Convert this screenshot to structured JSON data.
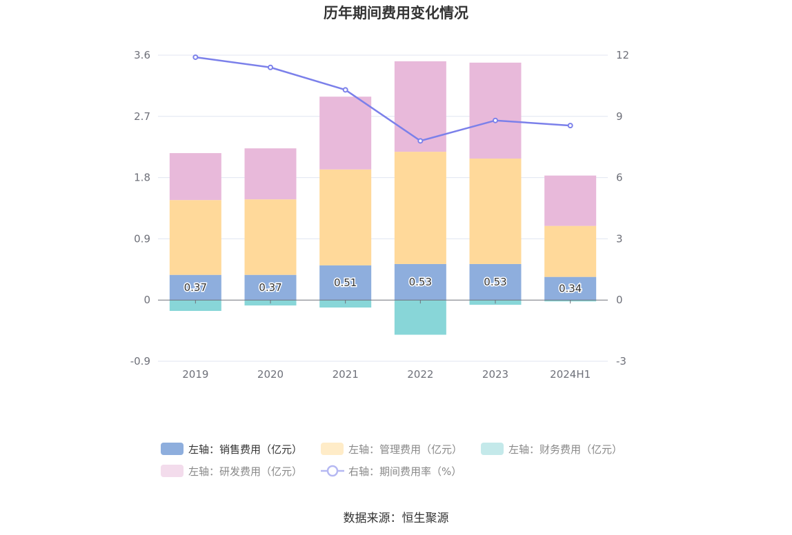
{
  "chart_data": {
    "type": "bar",
    "title": "历年期间费用变化情况",
    "categories": [
      "2019",
      "2020",
      "2021",
      "2022",
      "2023",
      "2024H1"
    ],
    "y_left": {
      "ylim": [
        -0.9,
        3.6
      ],
      "ticks": [
        "3.6",
        "2.7",
        "1.8",
        "0.9",
        "0",
        "-0.9"
      ],
      "tick_values": [
        3.6,
        2.7,
        1.8,
        0.9,
        0,
        -0.9
      ]
    },
    "y_right": {
      "ylim": [
        -3,
        12
      ],
      "ticks": [
        "12",
        "9",
        "6",
        "3",
        "0",
        "-3"
      ],
      "tick_values": [
        12,
        9,
        6,
        3,
        0,
        -3
      ]
    },
    "series": [
      {
        "name": "左轴：销售费用（亿元）",
        "kind": "bar",
        "axis": "left",
        "color": "#8eaedd",
        "values": [
          0.37,
          0.37,
          0.51,
          0.53,
          0.53,
          0.34
        ],
        "labels": [
          "0.37",
          "0.37",
          "0.51",
          "0.53",
          "0.53",
          "0.34"
        ]
      },
      {
        "name": "左轴：管理费用（亿元）",
        "kind": "bar",
        "axis": "left",
        "color": "#ffd99a",
        "values": [
          1.1,
          1.11,
          1.41,
          1.65,
          1.55,
          0.75
        ]
      },
      {
        "name": "左轴：财务费用（亿元）",
        "kind": "bar",
        "axis": "left",
        "color": "#88d6d8",
        "values": [
          -0.16,
          -0.08,
          -0.11,
          -0.51,
          -0.07,
          -0.02
        ]
      },
      {
        "name": "左轴：研发费用（亿元）",
        "kind": "bar",
        "axis": "left",
        "color": "#e8b9da",
        "values": [
          0.69,
          0.75,
          1.07,
          1.33,
          1.41,
          0.74
        ]
      },
      {
        "name": "右轴：期间费用率（%）",
        "kind": "line",
        "axis": "right",
        "color": "#7b80ea",
        "values": [
          11.9,
          11.4,
          10.3,
          7.8,
          8.8,
          8.55
        ]
      }
    ],
    "legend_position": "bottom",
    "grid": true
  },
  "source_label": "数据来源：恒生聚源"
}
